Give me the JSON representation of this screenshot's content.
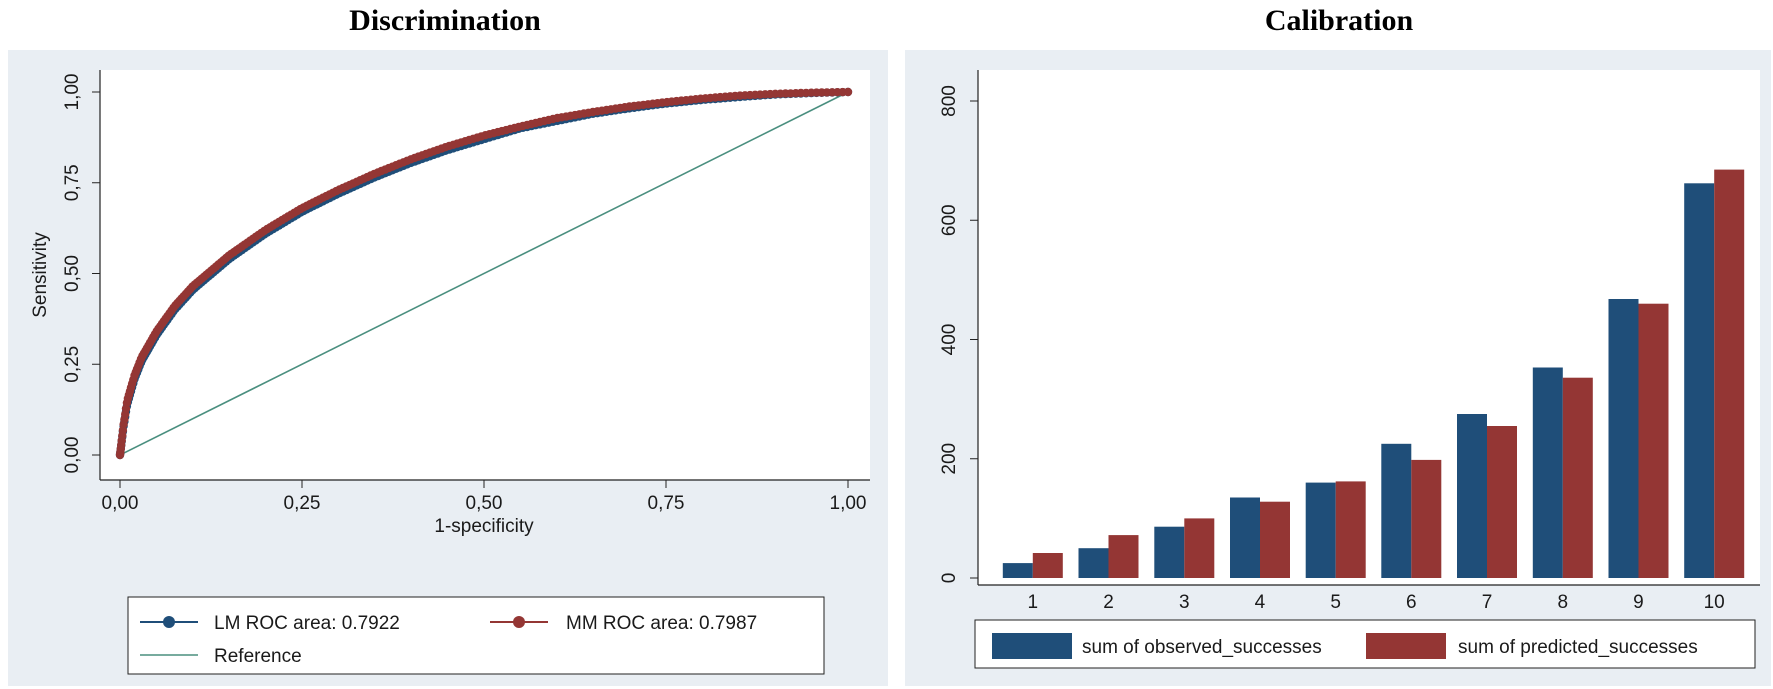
{
  "titles": {
    "left": "Discrimination",
    "right": "Calibration"
  },
  "chart_data": [
    {
      "type": "line",
      "title": "Discrimination",
      "xlabel": "1-specificity",
      "ylabel": "Sensitivity",
      "xlim": [
        0,
        1
      ],
      "ylim": [
        0,
        1
      ],
      "xticks": [
        "0,00",
        "0,25",
        "0,50",
        "0,75",
        "1,00"
      ],
      "yticks": [
        "0,00",
        "0,25",
        "0,50",
        "0,75",
        "1,00"
      ],
      "grid": false,
      "legend_position": "bottom",
      "series": [
        {
          "name": "LM ROC area: 0.7922",
          "color": "#1f4e79",
          "marker": "circle",
          "x": [
            0,
            0.005,
            0.01,
            0.02,
            0.03,
            0.05,
            0.075,
            0.1,
            0.15,
            0.2,
            0.25,
            0.3,
            0.35,
            0.4,
            0.45,
            0.5,
            0.55,
            0.6,
            0.65,
            0.7,
            0.75,
            0.8,
            0.85,
            0.9,
            0.95,
            1
          ],
          "y": [
            0,
            0.08,
            0.14,
            0.21,
            0.26,
            0.33,
            0.4,
            0.455,
            0.54,
            0.61,
            0.67,
            0.72,
            0.765,
            0.805,
            0.84,
            0.87,
            0.9,
            0.92,
            0.94,
            0.955,
            0.968,
            0.978,
            0.986,
            0.993,
            0.997,
            1
          ]
        },
        {
          "name": "MM ROC area: 0.7987",
          "color": "#943634",
          "marker": "circle",
          "x": [
            0,
            0.005,
            0.01,
            0.02,
            0.03,
            0.05,
            0.075,
            0.1,
            0.15,
            0.2,
            0.25,
            0.3,
            0.35,
            0.4,
            0.45,
            0.5,
            0.55,
            0.6,
            0.65,
            0.7,
            0.75,
            0.8,
            0.85,
            0.9,
            0.95,
            1
          ],
          "y": [
            0,
            0.085,
            0.15,
            0.22,
            0.27,
            0.34,
            0.41,
            0.465,
            0.55,
            0.62,
            0.68,
            0.73,
            0.775,
            0.815,
            0.85,
            0.88,
            0.905,
            0.928,
            0.945,
            0.96,
            0.972,
            0.982,
            0.99,
            0.995,
            0.998,
            1
          ]
        },
        {
          "name": "Reference",
          "color": "#4a8f7f",
          "marker": "none",
          "x": [
            0,
            1
          ],
          "y": [
            0,
            1
          ]
        }
      ]
    },
    {
      "type": "bar",
      "title": "Calibration",
      "xlabel": "",
      "ylabel": "",
      "categories": [
        "1",
        "2",
        "3",
        "4",
        "5",
        "6",
        "7",
        "8",
        "9",
        "10"
      ],
      "ylim": [
        0,
        800
      ],
      "yticks": [
        "0",
        "200",
        "400",
        "600",
        "800"
      ],
      "grid": false,
      "legend_position": "bottom",
      "series": [
        {
          "name": "sum of observed_successes",
          "color": "#1f4e79",
          "values": [
            25,
            50,
            86,
            135,
            160,
            225,
            275,
            353,
            468,
            662
          ]
        },
        {
          "name": "sum of predicted_successes",
          "color": "#943634",
          "values": [
            42,
            72,
            100,
            128,
            162,
            198,
            255,
            336,
            460,
            685
          ]
        }
      ]
    }
  ]
}
